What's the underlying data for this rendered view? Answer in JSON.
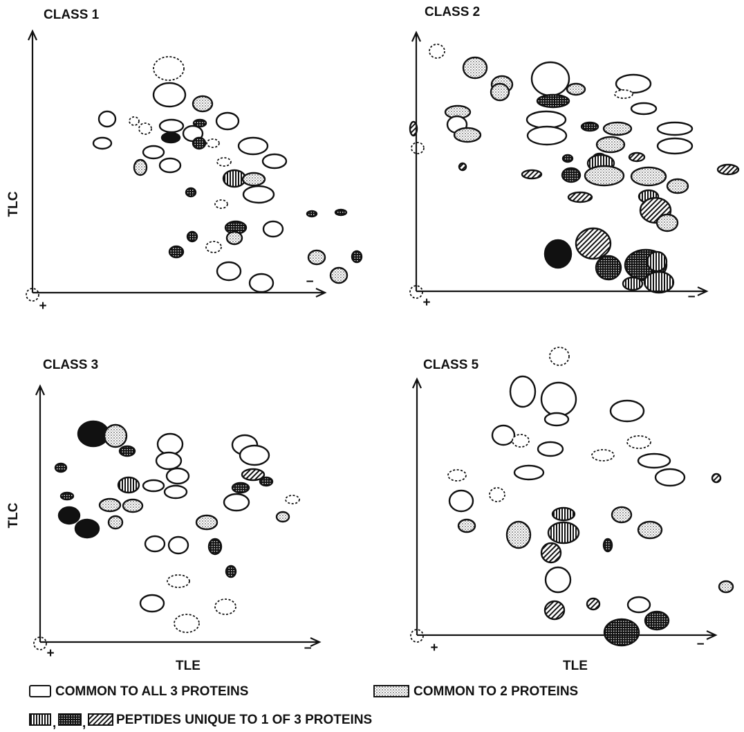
{
  "panels": [
    {
      "title": "CLASS 1",
      "y_label": "TLC",
      "plus": "+",
      "minus": "−"
    },
    {
      "title": "CLASS 2",
      "plus": "+",
      "minus": "−"
    },
    {
      "title": "CLASS 3",
      "y_label": "TLC",
      "x_label": "TLE",
      "plus": "+",
      "minus": "−"
    },
    {
      "title": "CLASS 5",
      "x_label": "TLE",
      "plus": "+",
      "minus": "−"
    }
  ],
  "legend": {
    "common_all": "COMMON TO ALL 3 PROTEINS",
    "common_two": "COMMON TO 2 PROTEINS",
    "unique": "PEPTIDES UNIQUE TO 1 OF 3 PROTEINS",
    "separators": [
      ",",
      ","
    ]
  }
}
